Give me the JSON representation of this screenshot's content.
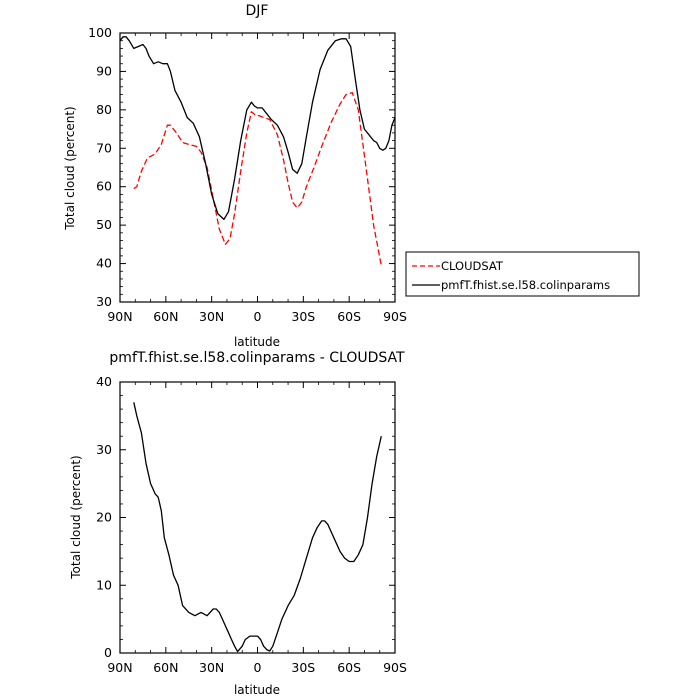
{
  "chart_data": [
    {
      "type": "line",
      "title": "DJF",
      "xlabel": "latitude",
      "ylabel": "Total cloud (percent)",
      "x_ticks": [
        "90N",
        "60N",
        "30N",
        "0",
        "30S",
        "60S",
        "90S"
      ],
      "y_ticks": [
        "30",
        "40",
        "50",
        "60",
        "70",
        "80",
        "90",
        "100"
      ],
      "xlim": [
        90,
        -90
      ],
      "ylim": [
        30,
        100
      ],
      "legend_position": "outside-right",
      "series": [
        {
          "name": "CLOUDSAT",
          "color": "#ff0000",
          "style": "dashed",
          "x": [
            81,
            79,
            76,
            72,
            67,
            63,
            59,
            57,
            53,
            49,
            45,
            40,
            37,
            33,
            29,
            25,
            21,
            18,
            15,
            11,
            7,
            4,
            1,
            -1,
            -4,
            -8,
            -13,
            -17,
            -20,
            -23,
            -26,
            -29,
            -32,
            -37,
            -42,
            -48,
            -54,
            -58,
            -62,
            -66,
            -71,
            -76,
            -81
          ],
          "y": [
            59.5,
            60,
            64,
            67.5,
            68.5,
            71,
            76,
            76,
            74,
            71.5,
            71,
            70.5,
            69,
            65,
            57,
            49,
            45,
            46.5,
            53,
            64,
            74,
            79.5,
            78.5,
            78.5,
            78,
            77.5,
            73.5,
            67,
            61,
            56,
            54.5,
            56,
            60,
            65,
            70.5,
            76.5,
            81.5,
            84,
            84.5,
            80,
            65,
            50,
            39.5
          ]
        },
        {
          "name": "pmfT.fhist.se.l58.colinparams",
          "color": "#000000",
          "style": "solid",
          "x": [
            90,
            88,
            86,
            84,
            81,
            78,
            75,
            73,
            71,
            68,
            65,
            62,
            59,
            57,
            54,
            50,
            46,
            42,
            38,
            34,
            30,
            26,
            22,
            19,
            15,
            11,
            7,
            4,
            2,
            0,
            -3,
            -6,
            -9,
            -13,
            -17,
            -20,
            -23,
            -26,
            -29,
            -32,
            -36,
            -41,
            -46,
            -51,
            -55,
            -58,
            -61,
            -64,
            -67,
            -70,
            -73,
            -76,
            -78,
            -80,
            -82,
            -84,
            -86,
            -88,
            -90
          ],
          "y": [
            98,
            99,
            99,
            98,
            96,
            96.5,
            97,
            96,
            94,
            92,
            92.5,
            92,
            92,
            90,
            85,
            82,
            78,
            76.5,
            73,
            66,
            58,
            53,
            51.5,
            53.5,
            62,
            72,
            80,
            82,
            81,
            80.5,
            80.5,
            79,
            77.5,
            76,
            73,
            69,
            64.5,
            63.5,
            66,
            73,
            82,
            90.5,
            95.5,
            98,
            98.5,
            98.5,
            96.5,
            88,
            80,
            75,
            73.5,
            72,
            71.5,
            70,
            69.5,
            70,
            72,
            76,
            78
          ]
        }
      ]
    },
    {
      "type": "line",
      "title": "pmfT.fhist.se.l58.colinparams - CLOUDSAT",
      "xlabel": "latitude",
      "ylabel": "Total cloud (percent)",
      "x_ticks": [
        "90N",
        "60N",
        "30N",
        "0",
        "30S",
        "60S",
        "90S"
      ],
      "y_ticks": [
        "0",
        "10",
        "20",
        "30",
        "40"
      ],
      "xlim": [
        90,
        -90
      ],
      "ylim": [
        0,
        40
      ],
      "series": [
        {
          "color": "#000000",
          "style": "solid",
          "x": [
            81,
            79,
            76,
            73,
            70,
            67,
            65,
            63,
            61,
            58,
            55,
            52,
            49,
            45,
            41,
            37,
            33,
            31,
            29,
            27,
            25,
            23,
            21,
            19,
            17,
            15,
            13,
            10,
            8,
            5,
            2,
            0,
            -2,
            -4,
            -6,
            -8,
            -10,
            -13,
            -16,
            -20,
            -24,
            -28,
            -32,
            -36,
            -39,
            -42,
            -44,
            -46,
            -48,
            -51,
            -54,
            -57,
            -60,
            -63,
            -66,
            -69,
            -72,
            -75,
            -78,
            -81
          ],
          "y": [
            37,
            35,
            32.5,
            28,
            25,
            23.5,
            23,
            21,
            17,
            14.5,
            11.5,
            10,
            7,
            6,
            5.5,
            6,
            5.5,
            6,
            6.5,
            6.5,
            6,
            5,
            4,
            3,
            2,
            1,
            0.2,
            1,
            2,
            2.5,
            2.5,
            2.5,
            2,
            1,
            0.5,
            0.3,
            1,
            3,
            5,
            7,
            8.5,
            11,
            14,
            17,
            18.5,
            19.5,
            19.5,
            19,
            18,
            16.5,
            15,
            14,
            13.5,
            13.5,
            14.5,
            16,
            20,
            25,
            29,
            32
          ]
        }
      ]
    }
  ]
}
